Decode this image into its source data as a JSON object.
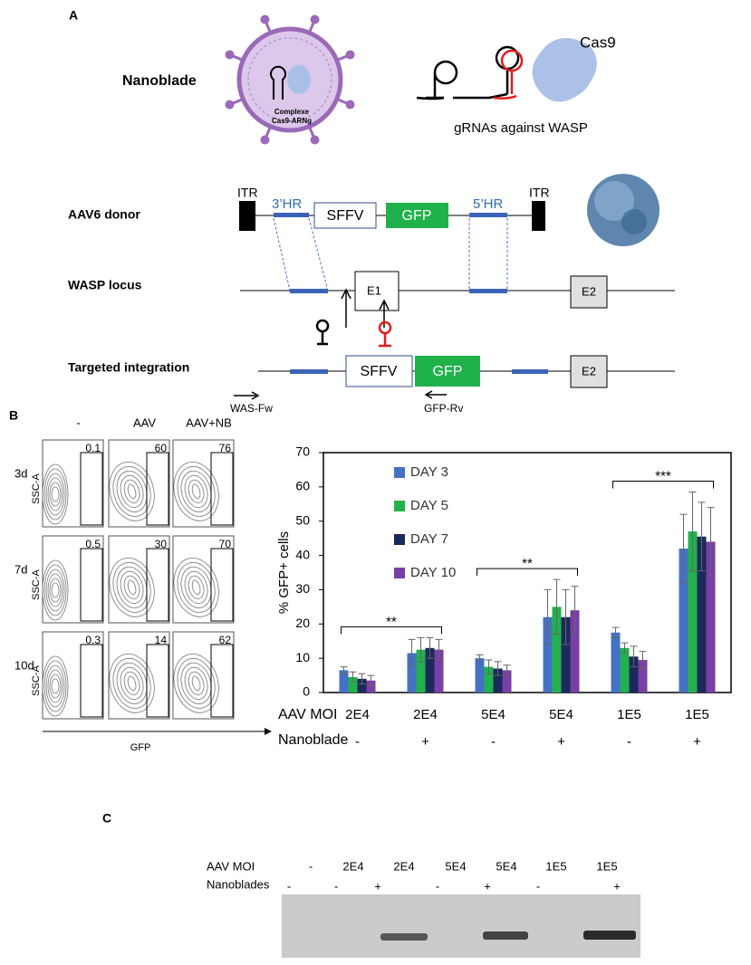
{
  "panel_a": {
    "label": "A",
    "nanoblade": "Nanoblade",
    "complex_line1": "Complexe",
    "complex_line2": "Cas9-ARNg",
    "cas9": "Cas9",
    "grnas": "gRNAs against WASP",
    "donor": {
      "label": "AAV6 donor",
      "itr_left": "ITR",
      "hr3": "3’HR",
      "sffv": "SFFV",
      "gfp": "GFP",
      "hr5": "5’HR",
      "itr_right": "ITR"
    },
    "locus": {
      "label": "WASP locus",
      "e1": "E1",
      "e2": "E2"
    },
    "integration": {
      "label": "Targeted integration",
      "sffv": "SFFV",
      "gfp": "GFP",
      "e2": "E2",
      "primer_fw": "WAS-Fw",
      "primer_rv": "GFP-Rv"
    }
  },
  "panel_b": {
    "label": "B",
    "columns": [
      "-",
      "AAV",
      "AAV+NB"
    ],
    "rows": [
      "3d",
      "7d",
      "10d"
    ],
    "y_axis": "SSC-A",
    "x_axis": "GFP",
    "gate_values": [
      [
        0.1,
        60,
        76
      ],
      [
        0.5,
        30,
        70
      ],
      [
        0.3,
        14,
        62
      ]
    ]
  },
  "chart_data": {
    "type": "bar",
    "ylabel": "% GFP+ cells",
    "xlabel": "AAV MOI",
    "secondary_label": "Nanoblade",
    "categories": [
      "2E4",
      "2E4",
      "5E4",
      "5E4",
      "1E5",
      "1E5"
    ],
    "secondary_categories": [
      "-",
      "+",
      "-",
      "+",
      "-",
      "+"
    ],
    "ylim": [
      0,
      70
    ],
    "yticks": [
      0,
      10,
      20,
      30,
      40,
      50,
      60,
      70
    ],
    "legend": "upper left",
    "series": [
      {
        "name": "DAY 3",
        "color": "#4472c4",
        "values": [
          6.5,
          11.5,
          10,
          22,
          17.5,
          42
        ],
        "errors": [
          1,
          4,
          1,
          8,
          1.5,
          10
        ]
      },
      {
        "name": "DAY 5",
        "color": "#22b14c",
        "values": [
          4.5,
          12.5,
          7.5,
          25,
          13,
          47
        ],
        "errors": [
          1.5,
          3.5,
          2,
          8,
          1.5,
          11.5
        ]
      },
      {
        "name": "DAY 7",
        "color": "#1b2a5c",
        "values": [
          4,
          13,
          7,
          22,
          10.5,
          45.5
        ],
        "errors": [
          1.5,
          3,
          2,
          8,
          3,
          10
        ]
      },
      {
        "name": "DAY 10",
        "color": "#7a3fa6",
        "values": [
          3.5,
          12.5,
          6.5,
          24,
          9.5,
          44
        ],
        "errors": [
          1.5,
          3,
          1.5,
          7,
          2.5,
          10
        ]
      }
    ],
    "annotations": [
      "**",
      "**",
      "***"
    ]
  },
  "panel_c": {
    "label": "C",
    "moi_label": "AAV MOI",
    "nb_label": "Nanoblades",
    "moi": [
      "-",
      "2E4",
      "2E4",
      "5E4",
      "5E4",
      "1E5",
      "1E5"
    ],
    "nanoblades": [
      "-",
      "-",
      "+",
      "-",
      "+",
      "-",
      "+"
    ]
  }
}
